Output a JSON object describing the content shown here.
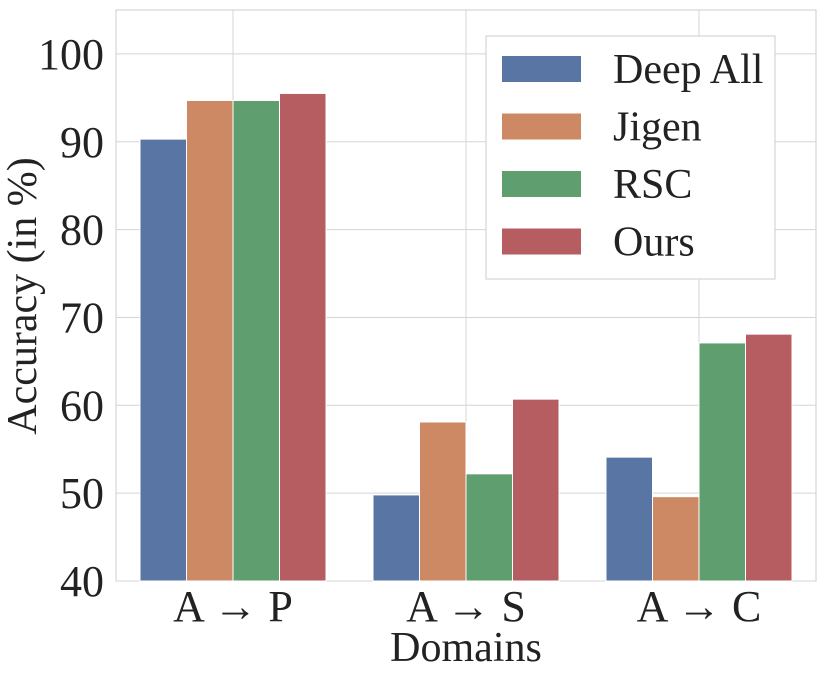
{
  "chart_data": {
    "type": "bar",
    "title": "",
    "xlabel": "Domains",
    "ylabel": "Accuracy (in %)",
    "categories": [
      "A → P",
      "A → S",
      "A → C"
    ],
    "ylim": [
      40,
      105
    ],
    "yticks": [
      40,
      50,
      60,
      70,
      80,
      90,
      100
    ],
    "grid": true,
    "legend_position": "top-right",
    "series": [
      {
        "name": "Deep All",
        "color": "#5875a4",
        "values": [
          90.3,
          49.8,
          54.1
        ]
      },
      {
        "name": "Jigen",
        "color": "#cc8963",
        "values": [
          94.7,
          58.1,
          49.6
        ]
      },
      {
        "name": "RSC",
        "color": "#5f9e6e",
        "values": [
          94.7,
          52.2,
          67.1
        ]
      },
      {
        "name": "Ours",
        "color": "#b55d60",
        "values": [
          95.5,
          60.7,
          68.1
        ]
      }
    ]
  }
}
